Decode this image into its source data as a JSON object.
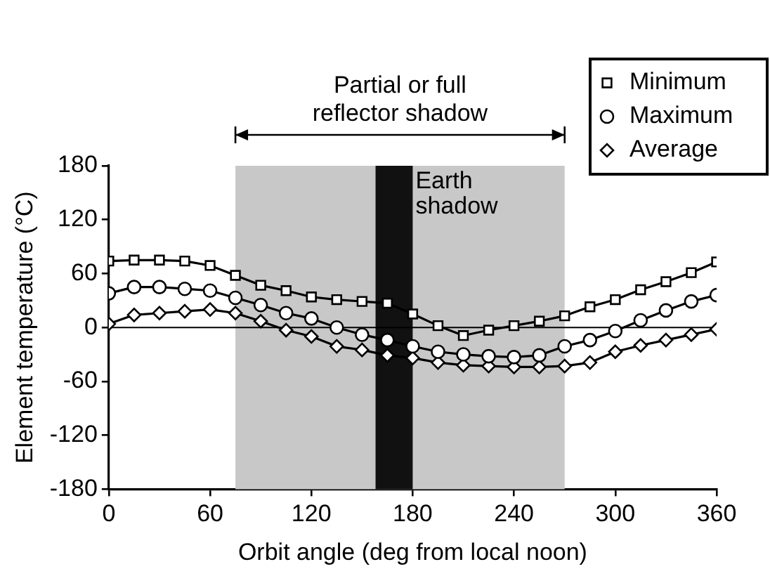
{
  "chart_data": {
    "type": "line",
    "xlabel": "Orbit angle (deg from local noon)",
    "ylabel": "Element temperature (°C)",
    "x": [
      0,
      15,
      30,
      45,
      60,
      75,
      90,
      105,
      120,
      135,
      150,
      165,
      180,
      195,
      210,
      225,
      240,
      255,
      270,
      285,
      300,
      315,
      330,
      345,
      360
    ],
    "series": [
      {
        "name": "Minimum",
        "color": "#000000",
        "marker": "square",
        "values": [
          74,
          75,
          75,
          74,
          69,
          58,
          47,
          41,
          34,
          31,
          29,
          27,
          15,
          2,
          -9,
          -3,
          2,
          7,
          13,
          23,
          31,
          42,
          51,
          61,
          73
        ]
      },
      {
        "name": "Maximum",
        "color": "#000000",
        "marker": "circle",
        "values": [
          38,
          45,
          45,
          43,
          41,
          33,
          25,
          16,
          10,
          0,
          -8,
          -14,
          -21,
          -27,
          -30,
          -32,
          -33,
          -31,
          -21,
          -14,
          -4,
          8,
          19,
          29,
          36
        ]
      },
      {
        "name": "Average",
        "color": "#000000",
        "marker": "diamond",
        "values": [
          4,
          14,
          16,
          18,
          20,
          16,
          7,
          -3,
          -10,
          -21,
          -25,
          -31,
          -34,
          -39,
          -42,
          -43,
          -44,
          -44,
          -43,
          -39,
          -27,
          -20,
          -14,
          -8,
          -2
        ]
      }
    ],
    "xlim": [
      0,
      360
    ],
    "xticks": [
      0,
      60,
      120,
      180,
      240,
      300,
      360
    ],
    "ylim": [
      -180,
      180
    ],
    "yticks": [
      -180,
      -120,
      -60,
      0,
      60,
      120,
      180
    ],
    "grid": false,
    "legend": "top right",
    "line_style": "solid",
    "ref_lines": [
      {
        "axis": "y",
        "value": 0,
        "color": "#000000"
      }
    ],
    "bands": [
      {
        "axis": "x",
        "from": 75,
        "to": 270,
        "label": "Partial or full reflector shadow",
        "color": "#c8c8c8"
      },
      {
        "axis": "x",
        "from": 158,
        "to": 180,
        "label": "Earth shadow",
        "color": "#111111"
      }
    ]
  }
}
